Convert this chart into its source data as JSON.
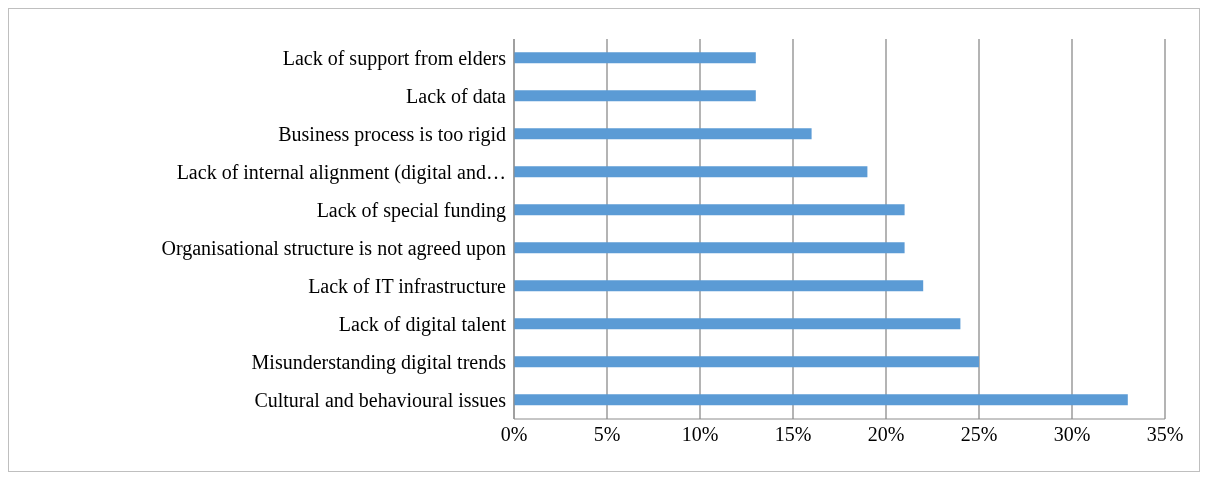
{
  "chart_data": {
    "type": "bar",
    "orientation": "horizontal",
    "categories": [
      "Lack of support from elders",
      "Lack of data",
      "Business process is too rigid",
      "Lack of internal alignment (digital and…",
      "Lack of special funding",
      "Organisational structure is not agreed upon",
      "Lack of IT infrastructure",
      "Lack of digital talent",
      "Misunderstanding digital trends",
      "Cultural and behavioural issues"
    ],
    "values": [
      13,
      13,
      16,
      19,
      21,
      21,
      22,
      24,
      25,
      33
    ],
    "color": "#5b9bd5",
    "xlim": [
      0,
      35
    ],
    "xticks": [
      {
        "value": 0,
        "label": "0%"
      },
      {
        "value": 5,
        "label": "5%"
      },
      {
        "value": 10,
        "label": "10%"
      },
      {
        "value": 15,
        "label": "15%"
      },
      {
        "value": 20,
        "label": "20%"
      },
      {
        "value": 25,
        "label": "25%"
      },
      {
        "value": 30,
        "label": "30%"
      },
      {
        "value": 35,
        "label": "35%"
      }
    ],
    "grid": "x"
  }
}
